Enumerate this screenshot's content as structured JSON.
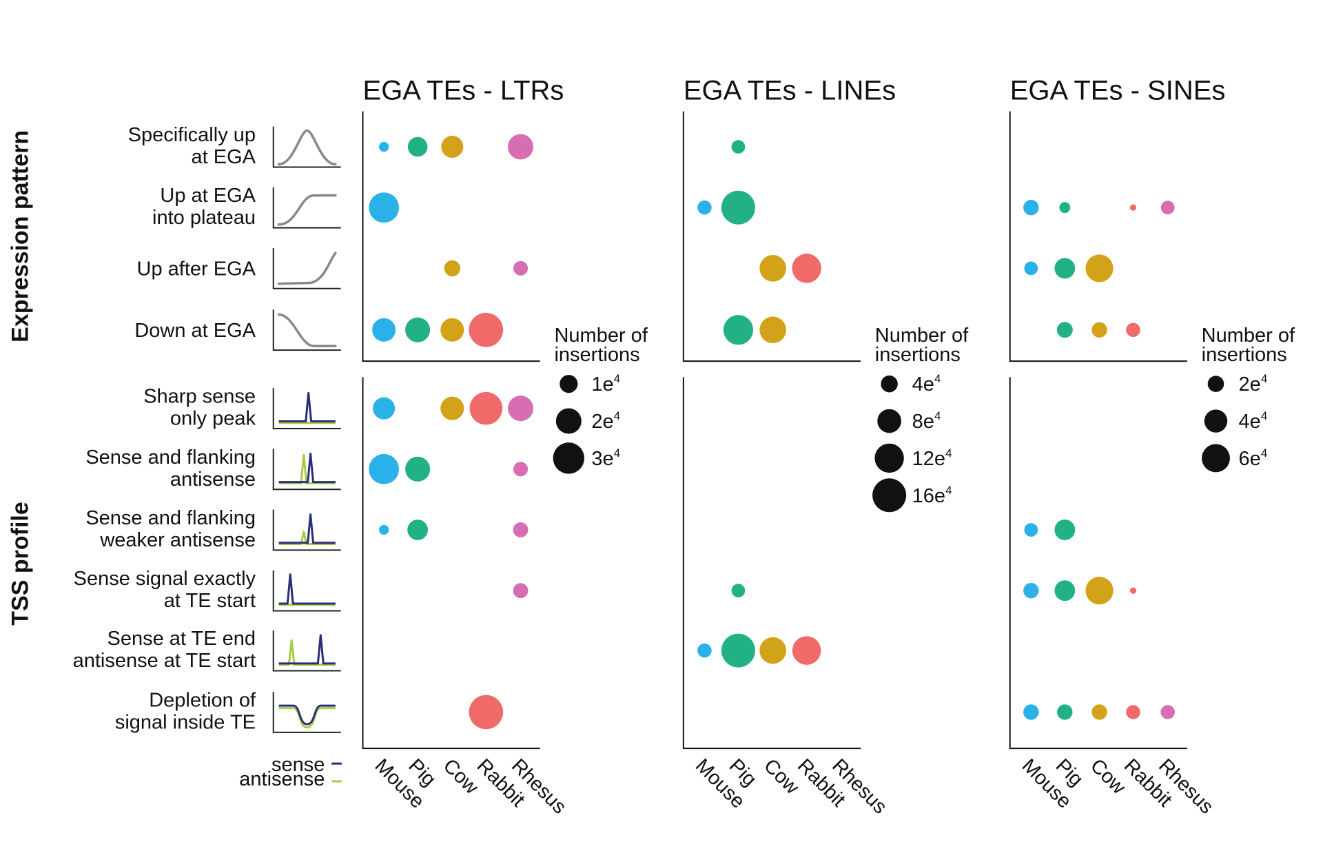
{
  "section_labels": {
    "expression": "Expression pattern",
    "tss": "TSS profile"
  },
  "rows": [
    {
      "lines": [
        "Specifically up",
        "at EGA"
      ],
      "icon": "peak-curve-icon"
    },
    {
      "lines": [
        "Up at EGA",
        "into plateau"
      ],
      "icon": "plateau-curve-icon"
    },
    {
      "lines": [
        "Up after EGA"
      ],
      "icon": "late-rise-curve-icon"
    },
    {
      "lines": [
        "Down at EGA"
      ],
      "icon": "decline-curve-icon"
    },
    {
      "lines": [
        "Sharp sense",
        "only peak"
      ],
      "icon": "sharp-sense-peak-icon"
    },
    {
      "lines": [
        "Sense and flanking",
        "antisense"
      ],
      "icon": "sense-flanking-antisense-icon"
    },
    {
      "lines": [
        "Sense and flanking",
        "weaker antisense"
      ],
      "icon": "sense-weaker-antisense-icon"
    },
    {
      "lines": [
        "Sense signal exactly",
        "at TE start"
      ],
      "icon": "sense-at-start-icon"
    },
    {
      "lines": [
        "Sense at TE end",
        "antisense at TE start"
      ],
      "icon": "sense-end-antisense-start-icon"
    },
    {
      "lines": [
        "Depletion of",
        "signal inside TE"
      ],
      "icon": "depletion-icon"
    }
  ],
  "profile_legend": {
    "sense": "sense",
    "antisense": "antisense"
  },
  "colors": {
    "Mouse": "#2bb1ea",
    "Pig": "#21b184",
    "Cow": "#d2a318",
    "Rabbit": "#ef6a68",
    "Rhesus": "#d76db2",
    "sense_line": "#2a2d78",
    "antisense_line": "#a6cd3d",
    "expression_line": "#888888",
    "legend_dot": "#111111"
  },
  "chart_data": [
    {
      "type": "scatter",
      "title": "EGA TEs - LTRs",
      "categories": [
        "Mouse",
        "Pig",
        "Cow",
        "Rabbit",
        "Rhesus"
      ],
      "legend_title": "Number of insertions",
      "legend_entries": [
        {
          "label": "1e",
          "sup": "4",
          "value": 10000
        },
        {
          "label": "2e",
          "sup": "4",
          "value": 20000
        },
        {
          "label": "3e",
          "sup": "4",
          "value": 30000
        }
      ],
      "points": [
        {
          "row": 0,
          "species": "Mouse",
          "value": 3000
        },
        {
          "row": 0,
          "species": "Pig",
          "value": 12000
        },
        {
          "row": 0,
          "species": "Cow",
          "value": 15000
        },
        {
          "row": 0,
          "species": "Rhesus",
          "value": 20000
        },
        {
          "row": 1,
          "species": "Mouse",
          "value": 28000
        },
        {
          "row": 2,
          "species": "Cow",
          "value": 8000
        },
        {
          "row": 2,
          "species": "Rhesus",
          "value": 6500
        },
        {
          "row": 3,
          "species": "Mouse",
          "value": 17000
        },
        {
          "row": 3,
          "species": "Pig",
          "value": 19000
        },
        {
          "row": 3,
          "species": "Cow",
          "value": 17000
        },
        {
          "row": 3,
          "species": "Rabbit",
          "value": 36000
        },
        {
          "row": 4,
          "species": "Mouse",
          "value": 15000
        },
        {
          "row": 4,
          "species": "Cow",
          "value": 17000
        },
        {
          "row": 4,
          "species": "Rabbit",
          "value": 33000
        },
        {
          "row": 4,
          "species": "Rhesus",
          "value": 20000
        },
        {
          "row": 5,
          "species": "Mouse",
          "value": 28000
        },
        {
          "row": 5,
          "species": "Pig",
          "value": 19000
        },
        {
          "row": 5,
          "species": "Rhesus",
          "value": 6500
        },
        {
          "row": 6,
          "species": "Mouse",
          "value": 3000
        },
        {
          "row": 6,
          "species": "Pig",
          "value": 13000
        },
        {
          "row": 6,
          "species": "Rhesus",
          "value": 7000
        },
        {
          "row": 7,
          "species": "Rhesus",
          "value": 7000
        },
        {
          "row": 9,
          "species": "Rabbit",
          "value": 36000
        }
      ]
    },
    {
      "type": "scatter",
      "title": "EGA TEs - LINEs",
      "categories": [
        "Mouse",
        "Pig",
        "Cow",
        "Rabbit",
        "Rhesus"
      ],
      "legend_title": "Number of insertions",
      "legend_entries": [
        {
          "label": "4e",
          "sup": "4",
          "value": 40000
        },
        {
          "label": "8e",
          "sup": "4",
          "value": 80000
        },
        {
          "label": "12e",
          "sup": "4",
          "value": 120000
        },
        {
          "label": "16e",
          "sup": "4",
          "value": 160000
        }
      ],
      "points": [
        {
          "row": 0,
          "species": "Pig",
          "value": 26000
        },
        {
          "row": 1,
          "species": "Mouse",
          "value": 28000
        },
        {
          "row": 1,
          "species": "Pig",
          "value": 160000
        },
        {
          "row": 2,
          "species": "Cow",
          "value": 100000
        },
        {
          "row": 2,
          "species": "Rabbit",
          "value": 120000
        },
        {
          "row": 3,
          "species": "Pig",
          "value": 125000
        },
        {
          "row": 3,
          "species": "Cow",
          "value": 100000
        },
        {
          "row": 7,
          "species": "Pig",
          "value": 26000
        },
        {
          "row": 8,
          "species": "Mouse",
          "value": 28000
        },
        {
          "row": 8,
          "species": "Pig",
          "value": 160000
        },
        {
          "row": 8,
          "species": "Cow",
          "value": 100000
        },
        {
          "row": 8,
          "species": "Rabbit",
          "value": 115000
        }
      ]
    },
    {
      "type": "scatter",
      "title": "EGA TEs - SINEs",
      "categories": [
        "Mouse",
        "Pig",
        "Cow",
        "Rabbit",
        "Rhesus"
      ],
      "legend_title": "Number of insertions",
      "legend_entries": [
        {
          "label": "2e",
          "sup": "4",
          "value": 20000
        },
        {
          "label": "4e",
          "sup": "4",
          "value": 40000
        },
        {
          "label": "6e",
          "sup": "4",
          "value": 60000
        }
      ],
      "points": [
        {
          "row": 1,
          "species": "Mouse",
          "value": 18000
        },
        {
          "row": 1,
          "species": "Pig",
          "value": 9000
        },
        {
          "row": 1,
          "species": "Rabbit",
          "value": 3000
        },
        {
          "row": 1,
          "species": "Rhesus",
          "value": 14000
        },
        {
          "row": 2,
          "species": "Mouse",
          "value": 14000
        },
        {
          "row": 2,
          "species": "Pig",
          "value": 32000
        },
        {
          "row": 2,
          "species": "Cow",
          "value": 58000
        },
        {
          "row": 3,
          "species": "Pig",
          "value": 19000
        },
        {
          "row": 3,
          "species": "Cow",
          "value": 18000
        },
        {
          "row": 3,
          "species": "Rabbit",
          "value": 15000
        },
        {
          "row": 6,
          "species": "Mouse",
          "value": 14000
        },
        {
          "row": 6,
          "species": "Pig",
          "value": 32000
        },
        {
          "row": 7,
          "species": "Mouse",
          "value": 18000
        },
        {
          "row": 7,
          "species": "Pig",
          "value": 32000
        },
        {
          "row": 7,
          "species": "Cow",
          "value": 58000
        },
        {
          "row": 7,
          "species": "Rabbit",
          "value": 3000
        },
        {
          "row": 9,
          "species": "Mouse",
          "value": 18000
        },
        {
          "row": 9,
          "species": "Pig",
          "value": 18000
        },
        {
          "row": 9,
          "species": "Cow",
          "value": 18000
        },
        {
          "row": 9,
          "species": "Rabbit",
          "value": 15000
        },
        {
          "row": 9,
          "species": "Rhesus",
          "value": 15000
        }
      ]
    }
  ]
}
